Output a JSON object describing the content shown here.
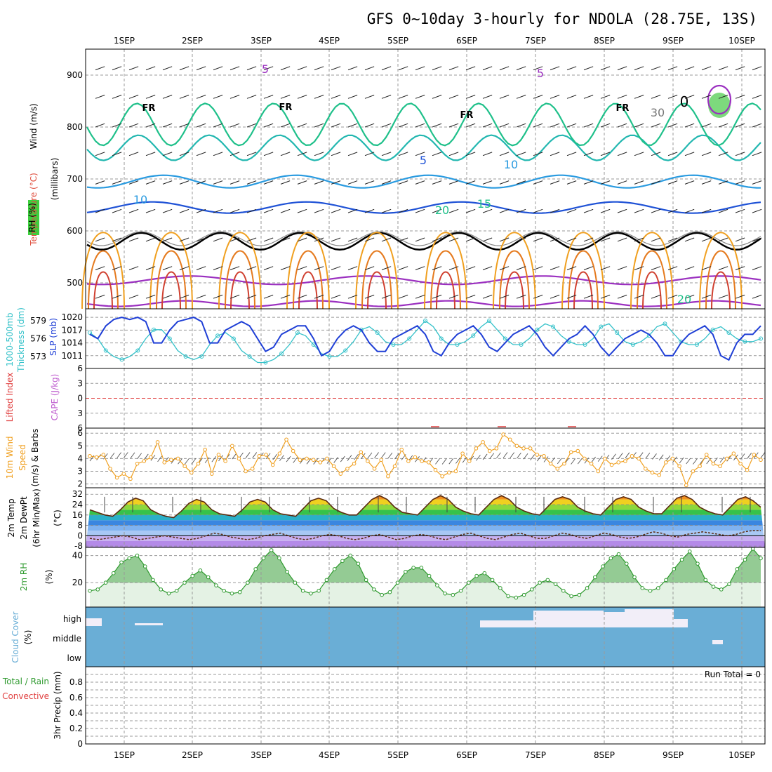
{
  "title": "GFS 0~10day 3-hourly for NDOLA (28.75E, 13S)",
  "colors": {
    "slp": "#1f3fd6",
    "thickness": "#33c1c9",
    "wind": "#f0a020",
    "rh": "#2f9a2f",
    "cloud": "#6aaed6",
    "clear": "#f2eef8",
    "purple": "#9b30c0",
    "lifted": "#e04040",
    "cape": "#c060d0"
  },
  "dates": [
    "1SEP",
    "2SEP",
    "3SEP",
    "4SEP",
    "5SEP",
    "6SEP",
    "7SEP",
    "8SEP",
    "9SEP",
    "10SEP"
  ],
  "panel_labels": {
    "upper": [
      "Wind (m/s)",
      "Temperature (°C)",
      "RH (%)",
      "(millibars)"
    ],
    "slp": [
      "SLP (mb)",
      "1000-500mb",
      "Thickness (dm)"
    ],
    "stability": [
      "Lifted Index",
      "CAPE (J/kg)"
    ],
    "wind10": [
      "10m Wind",
      "Speed",
      "(m/s) & Barbs"
    ],
    "temp2m": [
      "2m Temp",
      "2m DewPt",
      "(6hr Min/Max)",
      "(°C)"
    ],
    "rh2m": [
      "2m RH",
      "(%)"
    ],
    "cloud": [
      "Cloud Cover",
      "(%)"
    ],
    "precip": [
      "Total / Rain",
      "Convective",
      "3hr Precip (mm)"
    ]
  },
  "chart_data": [
    {
      "type": "heatmap",
      "name": "upper-air cross-section",
      "ylabel": "millibars",
      "yticks": [
        500,
        600,
        700,
        800,
        900
      ],
      "ylim": [
        450,
        950
      ],
      "contour_labels": [
        {
          "text": "5",
          "color": "purple"
        },
        {
          "text": "5",
          "color": "purple"
        },
        {
          "text": "FR",
          "color": "black"
        },
        {
          "text": "FR",
          "color": "black"
        },
        {
          "text": "FR",
          "color": "black"
        },
        {
          "text": "FR",
          "color": "black"
        },
        {
          "text": "0",
          "color": "black"
        },
        {
          "text": "30",
          "color": "gray"
        },
        {
          "text": "5",
          "color": "blue"
        },
        {
          "text": "10",
          "color": "lightblue"
        },
        {
          "text": "10",
          "color": "lightblue"
        },
        {
          "text": "15",
          "color": "teal"
        },
        {
          "text": "20",
          "color": "teal"
        },
        {
          "text": "20",
          "color": "teal"
        }
      ]
    },
    {
      "type": "line",
      "name": "slp-thickness",
      "yticks_left": [
        573,
        576,
        579
      ],
      "yticks_right": [
        1011,
        1014,
        1017,
        1020
      ],
      "series": [
        {
          "name": "SLP (mb)",
          "values": [
            1016,
            1015,
            1018,
            1019.5,
            1020,
            1019.5,
            1020,
            1019,
            1014,
            1014,
            1017,
            1019,
            1019.5,
            1020,
            1019,
            1014,
            1014,
            1017,
            1018,
            1019,
            1018,
            1015,
            1012,
            1013,
            1016,
            1017,
            1018,
            1018,
            1015,
            1011,
            1012,
            1015,
            1017,
            1018,
            1017,
            1014,
            1012,
            1012,
            1015,
            1016,
            1017,
            1018,
            1016,
            1012,
            1011,
            1014,
            1016,
            1017,
            1018,
            1016,
            1013,
            1012,
            1014,
            1016,
            1017,
            1018,
            1016,
            1013,
            1011,
            1013,
            1015,
            1016,
            1018,
            1016,
            1013,
            1011,
            1013,
            1015,
            1016,
            1017,
            1016,
            1014,
            1011,
            1011,
            1014,
            1016,
            1017,
            1018,
            1016,
            1011,
            1010,
            1014,
            1016,
            1016,
            1018
          ]
        },
        {
          "name": "1000-500mb Thickness (dm)",
          "values": [
            577,
            576,
            574,
            573,
            572.5,
            573,
            574,
            576,
            577.5,
            577.5,
            576,
            574,
            573,
            572.5,
            573,
            575,
            576.5,
            577,
            576,
            574,
            573,
            572,
            572,
            572.5,
            573.5,
            575,
            577,
            576.5,
            575,
            573.5,
            573,
            573,
            574,
            575.5,
            577.5,
            578,
            577,
            575.5,
            575,
            575,
            576,
            577.5,
            579,
            578,
            576,
            575,
            575,
            575.5,
            576.5,
            578,
            579,
            577.5,
            576,
            575,
            575,
            576,
            577.5,
            578.5,
            578,
            576.5,
            575.5,
            575,
            575,
            576,
            578,
            578.5,
            577,
            575.5,
            575,
            575.5,
            576.5,
            578,
            578.5,
            577,
            575.5,
            575,
            575,
            576,
            577.5,
            578,
            577,
            576,
            575.5,
            575.5,
            576
          ]
        }
      ]
    },
    {
      "type": "line",
      "name": "stability",
      "yticks": [
        -6,
        -3,
        0,
        3,
        6
      ],
      "ylim": [
        -6,
        6
      ],
      "series": [
        {
          "name": "Lifted Index",
          "values": [
            0
          ]
        }
      ]
    },
    {
      "type": "line",
      "name": "10m wind speed",
      "yticks": [
        2,
        3,
        4,
        5,
        6
      ],
      "ylim": [
        1.7,
        6.4
      ],
      "series": [
        {
          "name": "Speed",
          "values": [
            4.2,
            4.1,
            4.3,
            3.2,
            2.5,
            2.8,
            2.4,
            3.6,
            3.8,
            4.1,
            5.3,
            3.7,
            3.9,
            4.0,
            3.4,
            2.9,
            3.6,
            4.7,
            2.8,
            4.3,
            3.8,
            5.0,
            4.0,
            3.0,
            3.2,
            4.2,
            4.3,
            3.5,
            4.4,
            5.5,
            4.6,
            3.9,
            4.0,
            3.9,
            3.7,
            4.0,
            3.4,
            2.8,
            3.2,
            3.6,
            4.5,
            3.8,
            3.2,
            3.9,
            2.6,
            3.4,
            4.7,
            3.8,
            4.1,
            3.8,
            3.7,
            3.1,
            2.6,
            2.9,
            3.0,
            4.4,
            3.8,
            4.8,
            5.3,
            4.6,
            4.8,
            5.9,
            5.5,
            5.0,
            4.8,
            4.8,
            4.3,
            4.2,
            3.6,
            3.2,
            3.6,
            4.5,
            4.6,
            4.0,
            3.6,
            3.0,
            4.0,
            3.5,
            3.7,
            3.8,
            4.2,
            4.0,
            3.2,
            2.9,
            2.7,
            3.7,
            4.0,
            3.4,
            1.9,
            3.0,
            3.4,
            4.3,
            3.6,
            3.4,
            4.0,
            4.4,
            3.6,
            3.1,
            4.3,
            3.9
          ]
        }
      ]
    },
    {
      "type": "line",
      "name": "2m temperature",
      "yticks": [
        -8,
        0,
        8,
        16,
        24,
        32
      ],
      "ylim": [
        -9,
        37
      ],
      "series": [
        {
          "name": "2m Temp",
          "values": [
            20,
            18,
            16,
            15,
            20,
            26,
            29,
            27,
            20,
            17,
            15,
            14,
            19,
            25,
            28,
            26,
            20,
            17,
            16,
            15,
            20,
            26,
            28,
            26,
            20,
            17,
            16,
            15,
            21,
            27,
            29,
            27,
            21,
            18,
            16,
            16,
            22,
            28,
            31,
            28,
            22,
            18,
            17,
            16,
            22,
            28,
            31,
            28,
            22,
            19,
            17,
            16,
            22,
            28,
            31,
            28,
            22,
            19,
            17,
            16,
            22,
            28,
            30,
            28,
            22,
            19,
            17,
            16,
            22,
            28,
            30,
            28,
            22,
            19,
            17,
            17,
            23,
            29,
            31,
            28,
            22,
            19,
            17,
            16,
            22,
            28,
            30,
            27,
            22
          ]
        },
        {
          "name": "2m DewPt",
          "values": [
            -2,
            -3,
            -2,
            -1,
            0,
            -1,
            -3,
            -2,
            -1,
            0,
            -1,
            -2,
            -3,
            -2,
            0,
            2,
            1,
            -1,
            -2,
            -3,
            -2,
            0,
            1,
            2,
            0,
            -2,
            -3,
            -2,
            0,
            1,
            0,
            -2,
            -3,
            -2,
            0,
            1,
            -1,
            -3,
            -2,
            0,
            1,
            0,
            -2,
            -3,
            -1,
            1,
            2,
            0,
            -2,
            -3,
            -1,
            1,
            2,
            0,
            -2,
            -2,
            0,
            2,
            1,
            -1,
            -2,
            0,
            2,
            1,
            -1,
            -2,
            -1,
            1,
            3,
            2,
            0,
            -1,
            1,
            2,
            3,
            2,
            1,
            0,
            1,
            3,
            4,
            4
          ]
        }
      ]
    },
    {
      "type": "area",
      "name": "2m RH",
      "yticks": [
        20,
        40
      ],
      "ylim": [
        2,
        46
      ],
      "series": [
        {
          "name": "2m RH",
          "values": [
            14,
            15,
            20,
            27,
            35,
            38,
            40,
            32,
            22,
            15,
            12,
            14,
            20,
            25,
            29,
            24,
            18,
            14,
            12,
            13,
            20,
            30,
            38,
            44,
            38,
            28,
            20,
            14,
            12,
            14,
            22,
            30,
            36,
            40,
            34,
            22,
            15,
            11,
            13,
            20,
            28,
            31,
            31,
            25,
            18,
            12,
            11,
            14,
            20,
            25,
            27,
            22,
            16,
            10,
            9,
            11,
            15,
            20,
            22,
            19,
            14,
            10,
            11,
            16,
            24,
            32,
            38,
            41,
            34,
            24,
            16,
            14,
            16,
            22,
            30,
            37,
            43,
            34,
            22,
            17,
            15,
            19,
            30,
            37,
            45,
            38
          ]
        }
      ]
    },
    {
      "type": "heatmap",
      "name": "cloud cover",
      "categories": [
        "low",
        "middle",
        "high"
      ]
    },
    {
      "type": "bar",
      "name": "3hr precip",
      "ylabel": "3hr Precip (mm)",
      "yticks": [
        0,
        0.2,
        0.4,
        0.6,
        0.8
      ],
      "ylim": [
        0,
        1
      ],
      "run_total": "Run Total = 0"
    }
  ]
}
